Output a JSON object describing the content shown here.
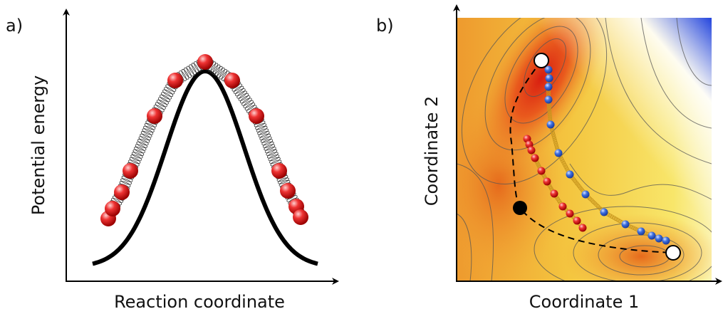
{
  "panels": [
    {
      "label": "a)",
      "x_axis_label": "Reaction coordinate",
      "y_axis_label": "Potential energy"
    },
    {
      "label": "b)",
      "x_axis_label": "Coordinate 1",
      "y_axis_label": "Coordinate 2"
    }
  ]
}
